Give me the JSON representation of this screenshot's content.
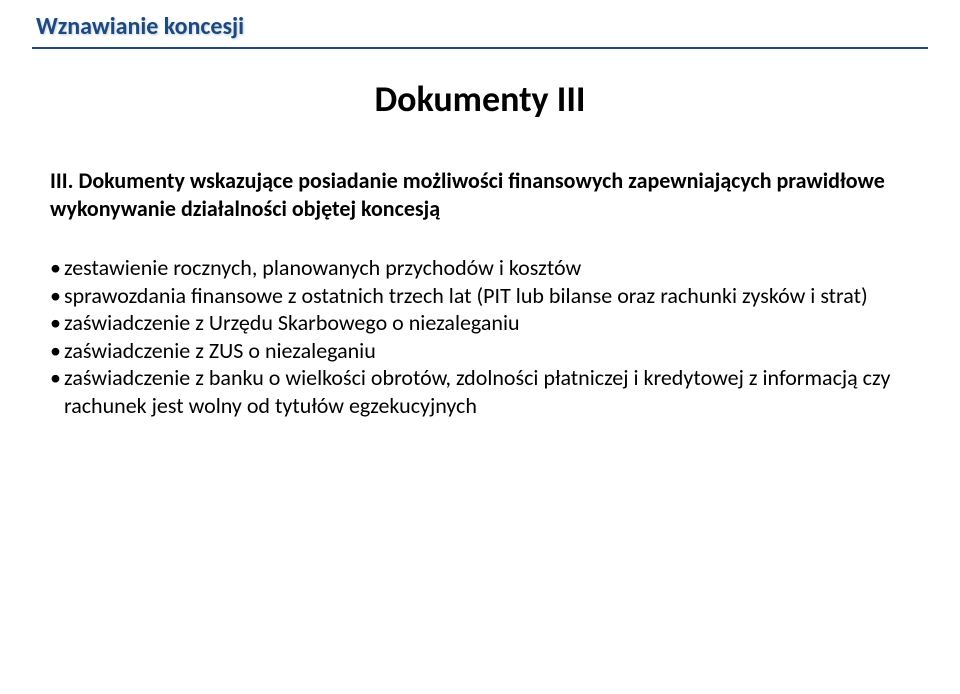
{
  "header": {
    "title": "Wznawianie koncesji",
    "underline_color": "#1f497d",
    "title_color": "#1f497d",
    "title_fontsize": 24
  },
  "main": {
    "title": "Dokumenty III",
    "title_fontsize": 36,
    "section_heading": "III. Dokumenty wskazujące posiadanie możliwości finansowych zapewniających prawidłowe wykonywanie działalności objętej koncesją",
    "bullets": [
      "zestawienie rocznych, planowanych przychodów i kosztów",
      "sprawozdania finansowe z ostatnich trzech lat (PIT lub bilanse oraz rachunki zysków i strat)",
      "zaświadczenie z Urzędu Skarbowego o niezaleganiu",
      "zaświadczenie z ZUS o niezaleganiu",
      "zaświadczenie z banku o wielkości obrotów, zdolności płatniczej i kredytowej z informacją czy rachunek jest wolny od tytułów egzekucyjnych"
    ],
    "body_fontsize": 22,
    "text_color": "#000000"
  },
  "background_color": "#ffffff"
}
